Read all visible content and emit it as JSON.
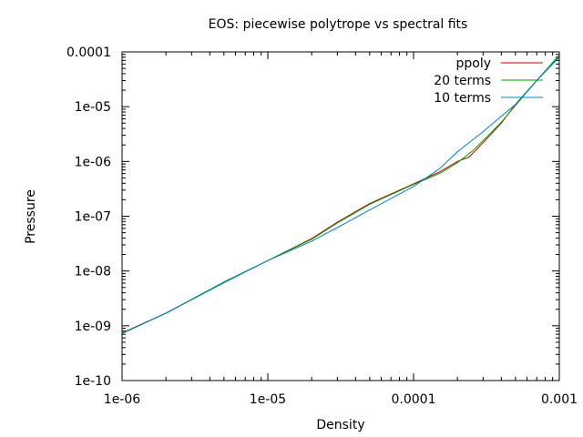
{
  "chart_data": {
    "type": "line",
    "title": "EOS: piecewise polytrope vs spectral fits",
    "xlabel": "Density",
    "ylabel": "Pressure",
    "xscale": "log",
    "yscale": "log",
    "xlim": [
      1e-06,
      0.001
    ],
    "ylim": [
      1e-10,
      0.0001
    ],
    "grid": false,
    "legend_position": "top-right",
    "x_ticks": [
      {
        "value": 1e-06,
        "label": "1e-06"
      },
      {
        "value": 1e-05,
        "label": "1e-05"
      },
      {
        "value": 0.0001,
        "label": "0.0001"
      },
      {
        "value": 0.001,
        "label": "0.001"
      }
    ],
    "y_ticks": [
      {
        "value": 1e-10,
        "label": "1e-10"
      },
      {
        "value": 1e-09,
        "label": "1e-09"
      },
      {
        "value": 1e-08,
        "label": "1e-08"
      },
      {
        "value": 1e-07,
        "label": "1e-07"
      },
      {
        "value": 1e-06,
        "label": "1e-06"
      },
      {
        "value": 1e-05,
        "label": "1e-05"
      },
      {
        "value": 0.0001,
        "label": "0.0001"
      }
    ],
    "series": [
      {
        "name": "ppoly",
        "color": "#c00000",
        "x": [
          1e-06,
          2e-06,
          5e-06,
          1e-05,
          2e-05,
          3e-05,
          5e-05,
          0.0001,
          0.00015,
          0.0002,
          0.00024,
          0.0003,
          0.0004,
          0.0005,
          0.0007,
          0.001
        ],
        "y": [
          7.4e-10,
          1.7e-09,
          6.2e-09,
          1.55e-08,
          3.9e-08,
          7.8e-08,
          1.7e-07,
          3.9e-07,
          6.4e-07,
          1e-06,
          1.2e-06,
          2.2e-06,
          5e-06,
          1.1e-05,
          3e-05,
          8.5e-05
        ]
      },
      {
        "name": "20 terms",
        "color": "#00a000",
        "x": [
          1e-06,
          2e-06,
          5e-06,
          1e-05,
          2e-05,
          3e-05,
          5e-05,
          0.0001,
          0.00015,
          0.0002,
          0.00025,
          0.0003,
          0.0004,
          0.0005,
          0.0007,
          0.001
        ],
        "y": [
          7.3e-10,
          1.7e-09,
          6.1e-09,
          1.55e-08,
          3.8e-08,
          7.5e-08,
          1.65e-07,
          3.8e-07,
          6e-07,
          9.5e-07,
          1.5e-06,
          2.4e-06,
          5.2e-06,
          1.05e-05,
          3e-05,
          8.8e-05
        ]
      },
      {
        "name": "10 terms",
        "color": "#0080c0",
        "x": [
          1e-06,
          2e-06,
          5e-06,
          1e-05,
          2e-05,
          3e-05,
          5e-05,
          0.0001,
          0.00015,
          0.0002,
          0.0003,
          0.0005,
          0.0007,
          0.001
        ],
        "y": [
          7.2e-10,
          1.7e-09,
          6.3e-09,
          1.55e-08,
          3.5e-08,
          6.2e-08,
          1.3e-07,
          3.5e-07,
          7.3e-07,
          1.5e-06,
          3.5e-06,
          1.1e-05,
          3e-05,
          8e-05
        ]
      }
    ]
  }
}
